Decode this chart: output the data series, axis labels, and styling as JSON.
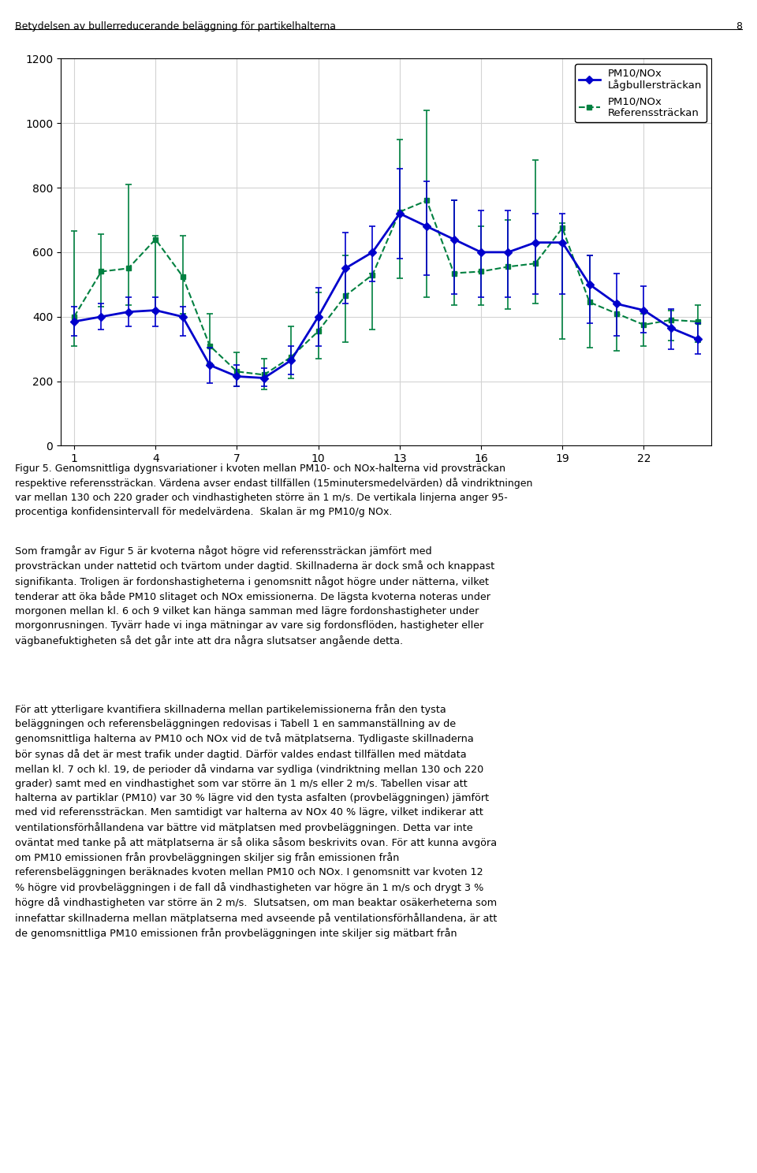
{
  "x": [
    1,
    2,
    3,
    4,
    5,
    6,
    7,
    8,
    9,
    10,
    11,
    12,
    13,
    14,
    15,
    16,
    17,
    18,
    19,
    20,
    21,
    22,
    23,
    24
  ],
  "blue_y": [
    385,
    400,
    415,
    420,
    400,
    250,
    215,
    210,
    265,
    400,
    550,
    600,
    720,
    680,
    640,
    600,
    600,
    630,
    630,
    500,
    440,
    420,
    365,
    330
  ],
  "blue_lo": [
    340,
    360,
    370,
    370,
    340,
    195,
    185,
    185,
    220,
    310,
    440,
    510,
    580,
    530,
    470,
    460,
    460,
    470,
    470,
    380,
    340,
    350,
    300,
    285
  ],
  "blue_hi": [
    430,
    440,
    460,
    460,
    430,
    305,
    250,
    240,
    310,
    490,
    660,
    680,
    860,
    820,
    760,
    730,
    730,
    720,
    720,
    590,
    535,
    495,
    425,
    380
  ],
  "green_y": [
    400,
    540,
    550,
    640,
    525,
    310,
    230,
    220,
    275,
    355,
    465,
    530,
    725,
    760,
    535,
    540,
    555,
    565,
    675,
    445,
    410,
    375,
    390,
    385
  ],
  "green_lo": [
    310,
    430,
    435,
    415,
    410,
    255,
    185,
    175,
    210,
    270,
    320,
    360,
    520,
    460,
    435,
    435,
    425,
    440,
    330,
    305,
    295,
    310,
    325,
    320
  ],
  "green_hi": [
    665,
    655,
    810,
    650,
    650,
    410,
    290,
    270,
    370,
    475,
    590,
    535,
    950,
    1040,
    760,
    680,
    700,
    885,
    690,
    590,
    445,
    410,
    420,
    435
  ],
  "header": "Betydelsen av bullerreducerande beläggning för partikelhalterna",
  "page_num": "8",
  "fig_caption_line1": "Figur 5. Genomsnittliga dygnsvariationer i kvoten mellan PM10- och NOx-halterna vid provsträckan",
  "fig_caption_line2": "respektive referenssträckan. Värdena avser endast tillfällen (15minutersmedelvärden) då vindriktningen",
  "fig_caption_line3": "var mellan 130 och 220 grader och vindhastigheten större än 1 m/s. De vertikala linjerna anger 95-",
  "fig_caption_line4": "procentiga konfidensintervall för medelvärdena.  Skalan är mg PM10/g NOx.",
  "legend1_line1": "PM10/NOx",
  "legend1_line2": "Lågbullersträckan",
  "legend2_line1": "PM10/NOx",
  "legend2_line2": "Referenssträckan",
  "blue_color": "#0000CC",
  "green_color": "#008040",
  "xticks": [
    1,
    4,
    7,
    10,
    13,
    16,
    19,
    22
  ],
  "yticks": [
    0,
    200,
    400,
    600,
    800,
    1000,
    1200
  ],
  "ylim": [
    0,
    1200
  ],
  "xlim": [
    1,
    24
  ],
  "body_text": [
    "Som framgår av Figur 5 är kvoterna något högre vid referenssträckan jämfört med",
    "provsträckan under nattetid och tvärtom under dagtid. Skillnaderna är dock små och knappast",
    "signifikanta. Troligen är fordonshastigheterna i genomsnitt något högre under nätterna, vilket",
    "tenderar att öka både PM10 slitaget och NOx emissionerna. De lägsta kvoterna noteras under",
    "morgonen mellan kl. 6 och 9 vilket kan hänga samman med lägre fordonshastigheter under",
    "morgonrusningen. Tyvärr hade vi inga mätningar av vare sig fordonsflöden, hastigheter eller",
    "vägbanefuktigheten så det går inte att dra några slutsatser angående detta.",
    "",
    "För att ytterligare kvantifiera skillnaderna mellan partikelemissionerna från den tysta",
    "beläggningen och referensbeläggningen redovisas i Tabell 1 en sammanställning av de",
    "genomsnittliga halterna av PM10 och NOx vid de två mätplatserna. Tydligaste skillnaderna",
    "bör synas då det är mest trafik under dagtid. Därför valdes endast tillfällen med mätdata",
    "mellan kl. 7 och kl. 19, de perioder då vindarna var sydliga (vindriktning mellan 130 och 220",
    "grader) samt med en vindhastighet som var större än 1 m/s eller 2 m/s. Tabellen visar att",
    "halterna av partiklar (PM10) var 30 % lägre vid den tysta asfalten (provbeläggningen) jämfört",
    "med vid referenssträckan. Men samtidigt var halterna av NOx 40 % lägre, vilket indikerar att",
    "ventilationsförhållandena var bättre vid mätplatsen med provbeläggningen. Detta var inte",
    "oväntat med tanke på att mätplatserna är så olika såsom beskrivits ovan. För att kunna avgöra",
    "om PM10 emissionen från provbeläggningen skiljer sig från emissionen från",
    "referensbeläggningen beräknades kvoten mellan PM10 och NOx. I genomsnitt var kvoten 12",
    "% högre vid provbeläggningen i de fall då vindhastigheten var högre än 1 m/s och drygt 3 %",
    "högre då vindhastigheten var större än 2 m/s.  Slutsatsen, om man beaktar osäkerheterna som",
    "innefattar skillnaderna mellan mätplatserna med avseende på ventilationsförhållandena, är att",
    "de genomsnittliga PM10 emissionen från provbeläggningen inte skiljer sig mätbart från"
  ]
}
